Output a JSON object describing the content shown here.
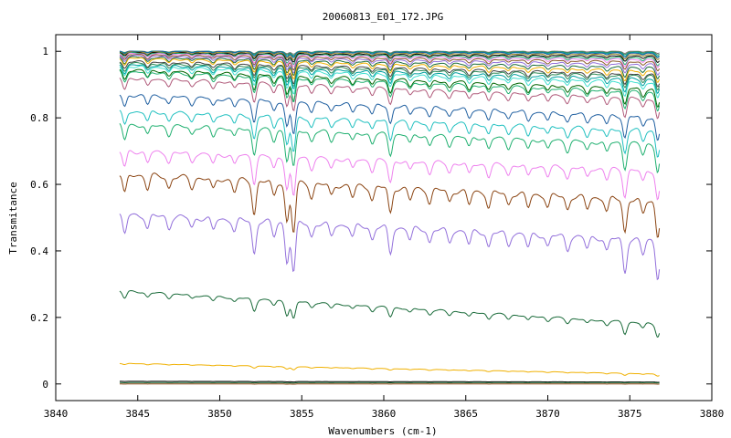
{
  "chart_data": {
    "type": "line",
    "title": "20060813_E01_172.JPG",
    "xlabel": "Wavenumbers (cm-1)",
    "ylabel": "Transmitance",
    "xlim": [
      3840,
      3880
    ],
    "ylim": [
      -0.05,
      1.05
    ],
    "x_ticks": [
      3840,
      3845,
      3850,
      3855,
      3860,
      3865,
      3870,
      3875,
      3880
    ],
    "y_ticks": [
      0,
      0.2,
      0.4,
      0.6,
      0.8,
      1
    ],
    "x_tick_labels": [
      "3840",
      "3845",
      "3850",
      "3855",
      "3860",
      "3865",
      "3870",
      "3875",
      "3880"
    ],
    "y_tick_labels": [
      "0",
      "0.2",
      "0.4",
      "0.6",
      "0.8",
      "1"
    ],
    "grid": false,
    "legend": "none",
    "x_range_data": [
      3843.9,
      3876.8
    ],
    "absorption_lines": [
      {
        "x": 3844.2,
        "depth": 0.6
      },
      {
        "x": 3845.6,
        "depth": 0.4
      },
      {
        "x": 3846.9,
        "depth": 0.35
      },
      {
        "x": 3848.3,
        "depth": 0.3
      },
      {
        "x": 3849.6,
        "depth": 0.35
      },
      {
        "x": 3850.9,
        "depth": 0.35
      },
      {
        "x": 3852.1,
        "depth": 1.0
      },
      {
        "x": 3853.3,
        "depth": 0.45
      },
      {
        "x": 3854.1,
        "depth": 1.2
      },
      {
        "x": 3854.5,
        "depth": 1.5
      },
      {
        "x": 3855.6,
        "depth": 0.4
      },
      {
        "x": 3856.8,
        "depth": 0.35
      },
      {
        "x": 3858.1,
        "depth": 0.35
      },
      {
        "x": 3859.3,
        "depth": 0.4
      },
      {
        "x": 3860.4,
        "depth": 0.8
      },
      {
        "x": 3861.6,
        "depth": 0.35
      },
      {
        "x": 3862.8,
        "depth": 0.4
      },
      {
        "x": 3864.0,
        "depth": 0.35
      },
      {
        "x": 3865.2,
        "depth": 0.4
      },
      {
        "x": 3866.4,
        "depth": 0.45
      },
      {
        "x": 3867.6,
        "depth": 0.35
      },
      {
        "x": 3868.8,
        "depth": 0.4
      },
      {
        "x": 3870.0,
        "depth": 0.35
      },
      {
        "x": 3871.2,
        "depth": 0.4
      },
      {
        "x": 3872.4,
        "depth": 0.35
      },
      {
        "x": 3873.6,
        "depth": 0.4
      },
      {
        "x": 3874.7,
        "depth": 1.0
      },
      {
        "x": 3875.8,
        "depth": 0.45
      },
      {
        "x": 3876.7,
        "depth": 1.1
      }
    ],
    "series": [
      {
        "color": "#7a7a7a",
        "start": 1.0,
        "end": 1.0,
        "scale": 0.006
      },
      {
        "color": "#2e8b57",
        "start": 1.0,
        "end": 0.998,
        "scale": 0.008
      },
      {
        "color": "#00a0a0",
        "start": 1.0,
        "end": 0.996,
        "scale": 0.01
      },
      {
        "color": "#1f5fa0",
        "start": 1.0,
        "end": 0.994,
        "scale": 0.012
      },
      {
        "color": "#9a8a2a",
        "start": 0.998,
        "end": 0.99,
        "scale": 0.014
      },
      {
        "color": "#000000",
        "start": 0.996,
        "end": 0.985,
        "scale": 0.016
      },
      {
        "color": "#20b070",
        "start": 0.995,
        "end": 0.98,
        "scale": 0.02
      },
      {
        "color": "#ee82ee",
        "start": 0.993,
        "end": 0.975,
        "scale": 0.022
      },
      {
        "color": "#8b5a2b",
        "start": 0.99,
        "end": 0.968,
        "scale": 0.025
      },
      {
        "color": "#9370db",
        "start": 0.987,
        "end": 0.96,
        "scale": 0.028
      },
      {
        "color": "#1a6b3a",
        "start": 0.983,
        "end": 0.95,
        "scale": 0.03
      },
      {
        "color": "#f0b000",
        "start": 0.98,
        "end": 0.94,
        "scale": 0.033
      },
      {
        "color": "#444444",
        "start": 0.97,
        "end": 0.93,
        "scale": 0.035
      },
      {
        "color": "#2e8b57",
        "start": 0.965,
        "end": 0.925,
        "scale": 0.038
      },
      {
        "color": "#00a0a0",
        "start": 0.96,
        "end": 0.915,
        "scale": 0.04
      },
      {
        "color": "#40e0d0",
        "start": 0.955,
        "end": 0.905,
        "scale": 0.045
      },
      {
        "color": "#006400",
        "start": 0.945,
        "end": 0.885,
        "scale": 0.05
      },
      {
        "color": "#20b070",
        "start": 0.94,
        "end": 0.875,
        "scale": 0.05
      },
      {
        "color": "#b05a7a",
        "start": 0.92,
        "end": 0.855,
        "scale": 0.055
      },
      {
        "color": "#1f5fa0",
        "start": 0.87,
        "end": 0.8,
        "scale": 0.065
      },
      {
        "color": "#20c0c0",
        "start": 0.82,
        "end": 0.76,
        "scale": 0.07
      },
      {
        "color": "#20b070",
        "start": 0.78,
        "end": 0.72,
        "scale": 0.075
      },
      {
        "color": "#ee82ee",
        "start": 0.7,
        "end": 0.64,
        "scale": 0.08
      },
      {
        "color": "#8b4513",
        "start": 0.63,
        "end": 0.55,
        "scale": 0.1
      },
      {
        "color": "#9370db",
        "start": 0.51,
        "end": 0.43,
        "scale": 0.1
      },
      {
        "color": "#1a6b3a",
        "start": 0.28,
        "end": 0.18,
        "scale": 0.035
      },
      {
        "color": "#f0b000",
        "start": 0.062,
        "end": 0.03,
        "scale": 0.006
      },
      {
        "color": "#000000",
        "start": 0.008,
        "end": 0.006,
        "scale": 0.001
      },
      {
        "color": "#1a6b3a",
        "start": 0.004,
        "end": 0.004,
        "scale": 0.0008
      },
      {
        "color": "#8b4513",
        "start": 0.0,
        "end": 0.0,
        "scale": 0.0005
      }
    ]
  }
}
